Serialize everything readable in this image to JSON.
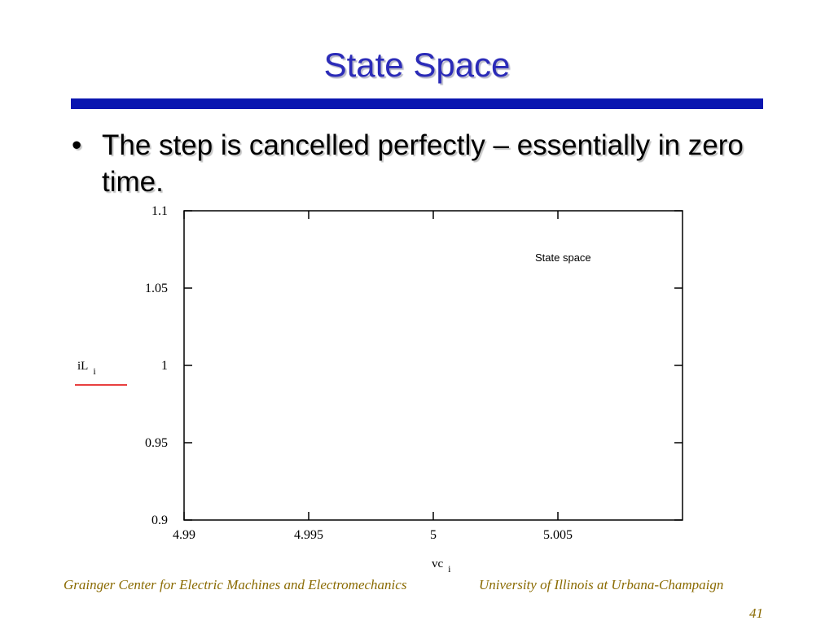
{
  "slide": {
    "title": "State Space",
    "bullets": [
      "The step is cancelled perfectly – essentially in zero time."
    ],
    "bullet_symbol": "•"
  },
  "colors": {
    "title": "#2b2bb8",
    "title_rule": "#0a16b0",
    "footer": "#8a6a00",
    "legend_line": "#e00000"
  },
  "footer": {
    "left": "Grainger Center for Electric Machines and Electromechanics",
    "right": "University of Illinois at Urbana-Champaign",
    "page": "41"
  },
  "chart_data": {
    "type": "scatter",
    "title": "State space",
    "xlabel": "vc",
    "xlabel_sub": "i",
    "ylabel": "iL",
    "ylabel_sub": "i",
    "xlim": [
      4.99,
      5.01
    ],
    "ylim": [
      0.9,
      1.1
    ],
    "x_ticks": [
      4.99,
      4.995,
      5,
      5.005
    ],
    "x_tick_labels": [
      "4.99",
      "4.995",
      "5",
      "5.005"
    ],
    "y_ticks": [
      0.9,
      0.95,
      1,
      1.05,
      1.1
    ],
    "y_tick_labels": [
      "0.9",
      "0.95",
      "1",
      "1.05",
      "1.1"
    ],
    "grid": false,
    "series": [
      {
        "name": "iL i",
        "color": "#e00000",
        "x": [],
        "y": []
      }
    ]
  }
}
